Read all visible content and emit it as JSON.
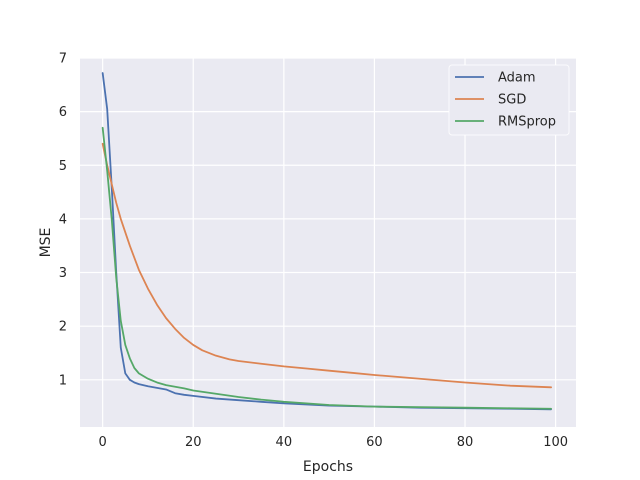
{
  "chart_data": {
    "type": "line",
    "title": "",
    "xlabel": "Epochs",
    "ylabel": "MSE",
    "xlim": [
      -5,
      104.5
    ],
    "ylim": [
      0.12,
      7.0
    ],
    "xticks": [
      0,
      20,
      40,
      60,
      80,
      100
    ],
    "yticks": [
      1,
      2,
      3,
      4,
      5,
      6,
      7
    ],
    "grid": true,
    "legend_position": "top-right",
    "series": [
      {
        "name": "Adam",
        "color": "#4c72b0",
        "x": [
          0,
          1,
          2,
          3,
          4,
          5,
          6,
          7,
          8,
          10,
          12,
          14,
          16,
          18,
          20,
          25,
          30,
          35,
          40,
          45,
          50,
          60,
          70,
          80,
          90,
          99
        ],
        "y": [
          6.72,
          6.05,
          4.6,
          3.0,
          1.6,
          1.12,
          1.0,
          0.95,
          0.92,
          0.88,
          0.85,
          0.82,
          0.75,
          0.72,
          0.7,
          0.65,
          0.62,
          0.59,
          0.56,
          0.54,
          0.52,
          0.5,
          0.48,
          0.47,
          0.46,
          0.45
        ]
      },
      {
        "name": "SGD",
        "color": "#dd8452",
        "x": [
          0,
          1,
          2,
          3,
          4,
          5,
          6,
          8,
          10,
          12,
          14,
          16,
          18,
          20,
          22,
          25,
          28,
          30,
          35,
          40,
          45,
          50,
          55,
          60,
          70,
          80,
          90,
          99
        ],
        "y": [
          5.4,
          5.0,
          4.65,
          4.3,
          4.0,
          3.75,
          3.5,
          3.05,
          2.7,
          2.4,
          2.15,
          1.95,
          1.78,
          1.65,
          1.55,
          1.45,
          1.38,
          1.35,
          1.3,
          1.25,
          1.21,
          1.17,
          1.13,
          1.09,
          1.02,
          0.95,
          0.89,
          0.86
        ]
      },
      {
        "name": "RMSprop",
        "color": "#55a868",
        "x": [
          0,
          1,
          2,
          3,
          4,
          5,
          6,
          7,
          8,
          10,
          12,
          14,
          16,
          18,
          20,
          25,
          30,
          35,
          40,
          45,
          50,
          60,
          70,
          80,
          90,
          99
        ],
        "y": [
          5.7,
          4.9,
          4.0,
          2.9,
          2.1,
          1.65,
          1.4,
          1.22,
          1.12,
          1.02,
          0.95,
          0.9,
          0.87,
          0.84,
          0.8,
          0.74,
          0.68,
          0.63,
          0.59,
          0.56,
          0.53,
          0.5,
          0.49,
          0.48,
          0.47,
          0.46
        ]
      }
    ]
  }
}
